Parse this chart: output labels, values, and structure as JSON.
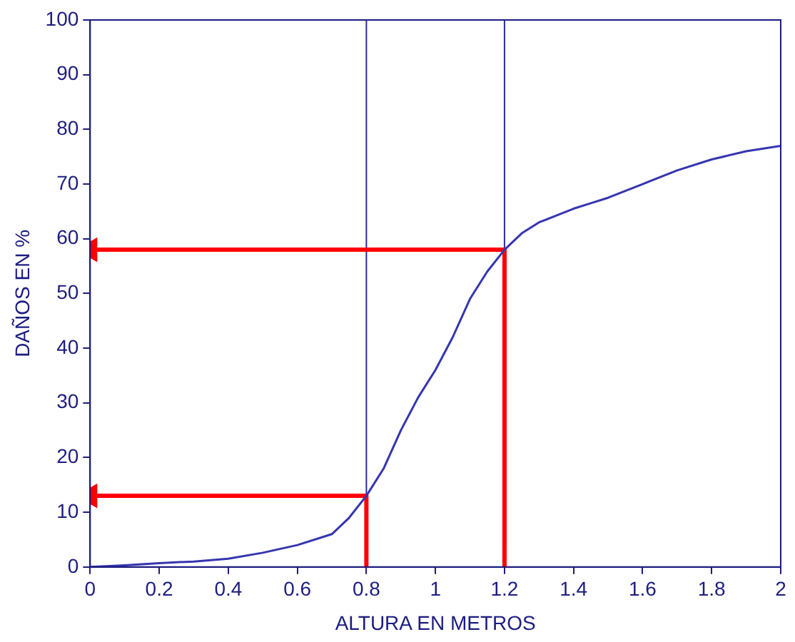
{
  "chart_data": {
    "type": "line",
    "xlabel": "ALTURA EN METROS",
    "ylabel": "DAÑOS EN %",
    "xlim": [
      0,
      2
    ],
    "xticks": [
      0,
      0.2,
      0.4,
      0.6,
      0.8,
      1,
      1.2,
      1.4,
      1.6,
      1.8,
      2
    ],
    "ylim": [
      0,
      100
    ],
    "yticks": [
      0,
      10,
      20,
      30,
      40,
      50,
      60,
      70,
      80,
      90,
      100
    ],
    "grid": false,
    "legend": false,
    "line_style": "solid",
    "series": [
      {
        "color": "#3535b0",
        "marker": "none",
        "x": [
          0,
          0.1,
          0.2,
          0.3,
          0.4,
          0.5,
          0.6,
          0.7,
          0.75,
          0.8,
          0.85,
          0.9,
          0.95,
          1.0,
          1.05,
          1.1,
          1.15,
          1.2,
          1.25,
          1.3,
          1.4,
          1.45,
          1.5,
          1.6,
          1.7,
          1.8,
          1.9,
          2.0
        ],
        "values": [
          0,
          0.3,
          0.7,
          1,
          1.5,
          2.6,
          4,
          6,
          9,
          13,
          18,
          25,
          31,
          36,
          42,
          49,
          54,
          58,
          61,
          63,
          65.5,
          66.5,
          67.5,
          70,
          72.5,
          74.5,
          76,
          77
        ]
      },
      {
        "color": "#ff0000",
        "x": [
          0.8,
          0.8,
          0
        ],
        "values": [
          0,
          13,
          13
        ]
      },
      {
        "color": "#ff0000",
        "x": [
          1.2,
          1.2,
          0
        ],
        "values": [
          0,
          58,
          58
        ]
      }
    ],
    "ref_lines": [
      {
        "axis": "x",
        "value": 0.8,
        "color": "#2b2ba0"
      },
      {
        "axis": "x",
        "value": 1.2,
        "color": "#2b2ba0"
      }
    ]
  }
}
